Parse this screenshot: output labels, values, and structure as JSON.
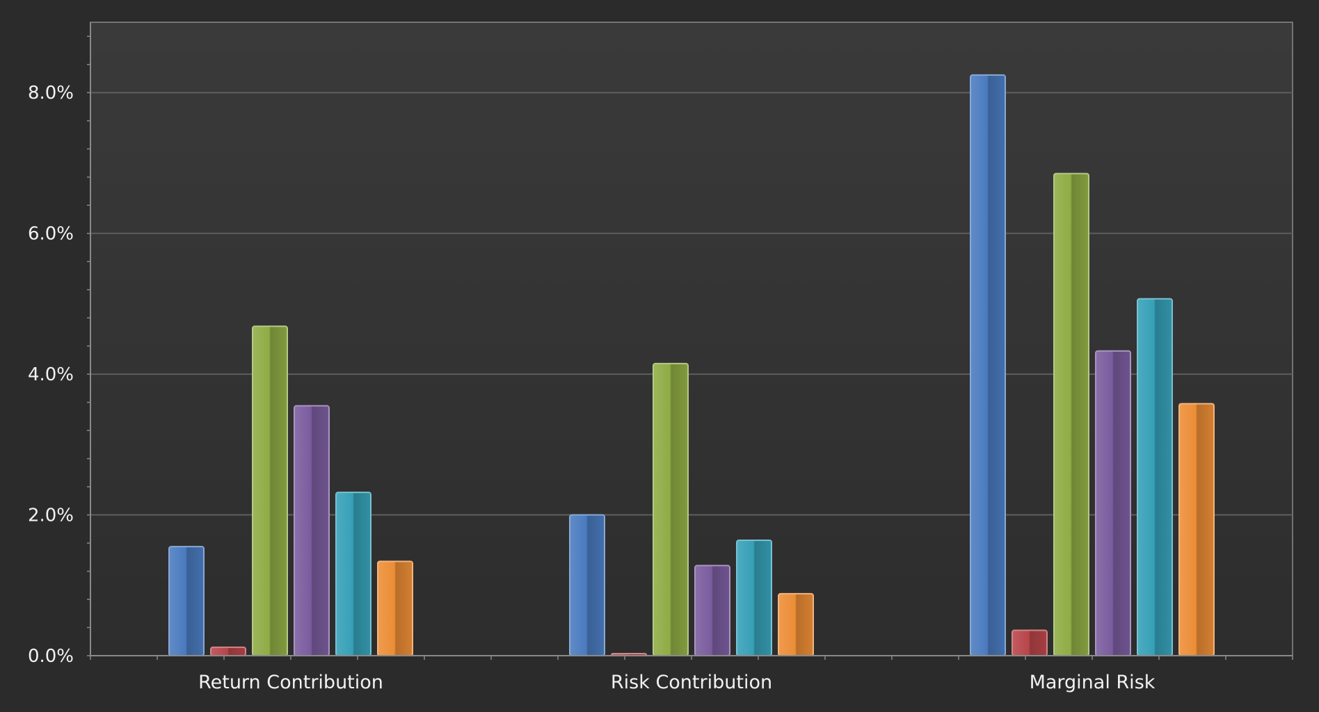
{
  "colors": {
    "background": "#2b2b2b",
    "plot_bg_top": "#3a3a3a",
    "plot_bg_bottom": "#2d2d2d",
    "grid": "#5e5e5e",
    "axis": "#8a8a8a",
    "text": "#f2f2f2"
  },
  "chart_data": {
    "type": "bar",
    "categories": [
      "Return Contribution",
      "Risk Contribution",
      "Marginal Risk"
    ],
    "ylim": [
      0,
      9.0
    ],
    "yticks": [
      0.0,
      2.0,
      4.0,
      6.0,
      8.0
    ],
    "ytick_labels": [
      "0.0%",
      "2.0%",
      "4.0%",
      "6.0%",
      "8.0%"
    ],
    "grid": true,
    "legend": "none",
    "series": [
      {
        "color": "#4a7bbf",
        "values": [
          1.55,
          2.0,
          8.25
        ]
      },
      {
        "color": "#b8454a",
        "values": [
          0.12,
          0.03,
          0.36
        ]
      },
      {
        "color": "#8fac45",
        "values": [
          4.68,
          4.15,
          6.85
        ]
      },
      {
        "color": "#7a5c9e",
        "values": [
          3.55,
          1.28,
          4.33
        ]
      },
      {
        "color": "#36a0b7",
        "values": [
          2.32,
          1.64,
          5.07
        ]
      },
      {
        "color": "#ec8d36",
        "values": [
          1.34,
          0.88,
          3.58
        ]
      }
    ]
  }
}
